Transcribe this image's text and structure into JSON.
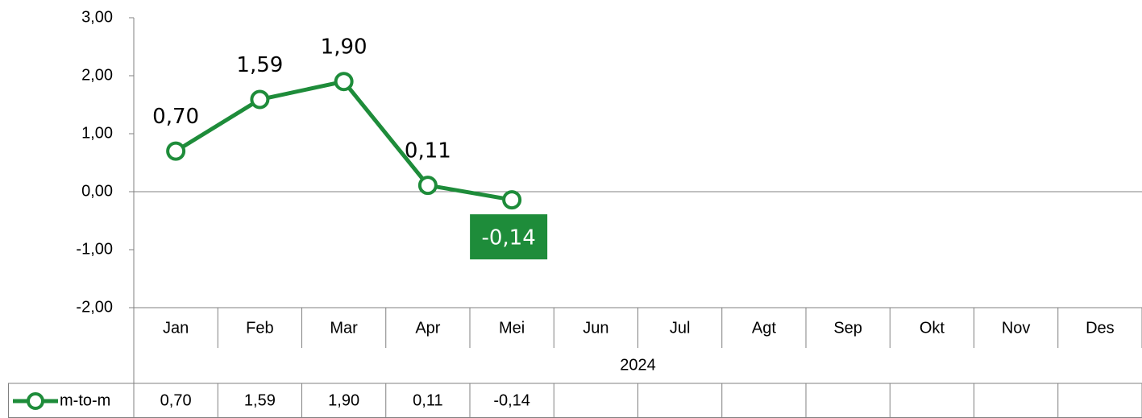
{
  "chart_data": {
    "type": "line",
    "categories": [
      "Jan",
      "Feb",
      "Mar",
      "Apr",
      "Mei",
      "Jun",
      "Jul",
      "Agt",
      "Sep",
      "Okt",
      "Nov",
      "Des"
    ],
    "category_group": "2024",
    "series": [
      {
        "name": "m-to-m",
        "color": "#1e8c3a",
        "values": [
          0.7,
          1.59,
          1.9,
          0.11,
          -0.14,
          null,
          null,
          null,
          null,
          null,
          null,
          null
        ],
        "value_labels": [
          "0,70",
          "1,59",
          "1,90",
          "0,11",
          "-0,14",
          null,
          null,
          null,
          null,
          null,
          null,
          null
        ]
      }
    ],
    "ylim": [
      -2,
      3
    ],
    "yticks": [
      {
        "value": -2,
        "label": "-2,00"
      },
      {
        "value": -1,
        "label": "-1,00"
      },
      {
        "value": 0,
        "label": "0,00"
      },
      {
        "value": 1,
        "label": "1,00"
      },
      {
        "value": 2,
        "label": "2,00"
      },
      {
        "value": 3,
        "label": "3,00"
      }
    ],
    "grid": false,
    "data_table": true
  }
}
